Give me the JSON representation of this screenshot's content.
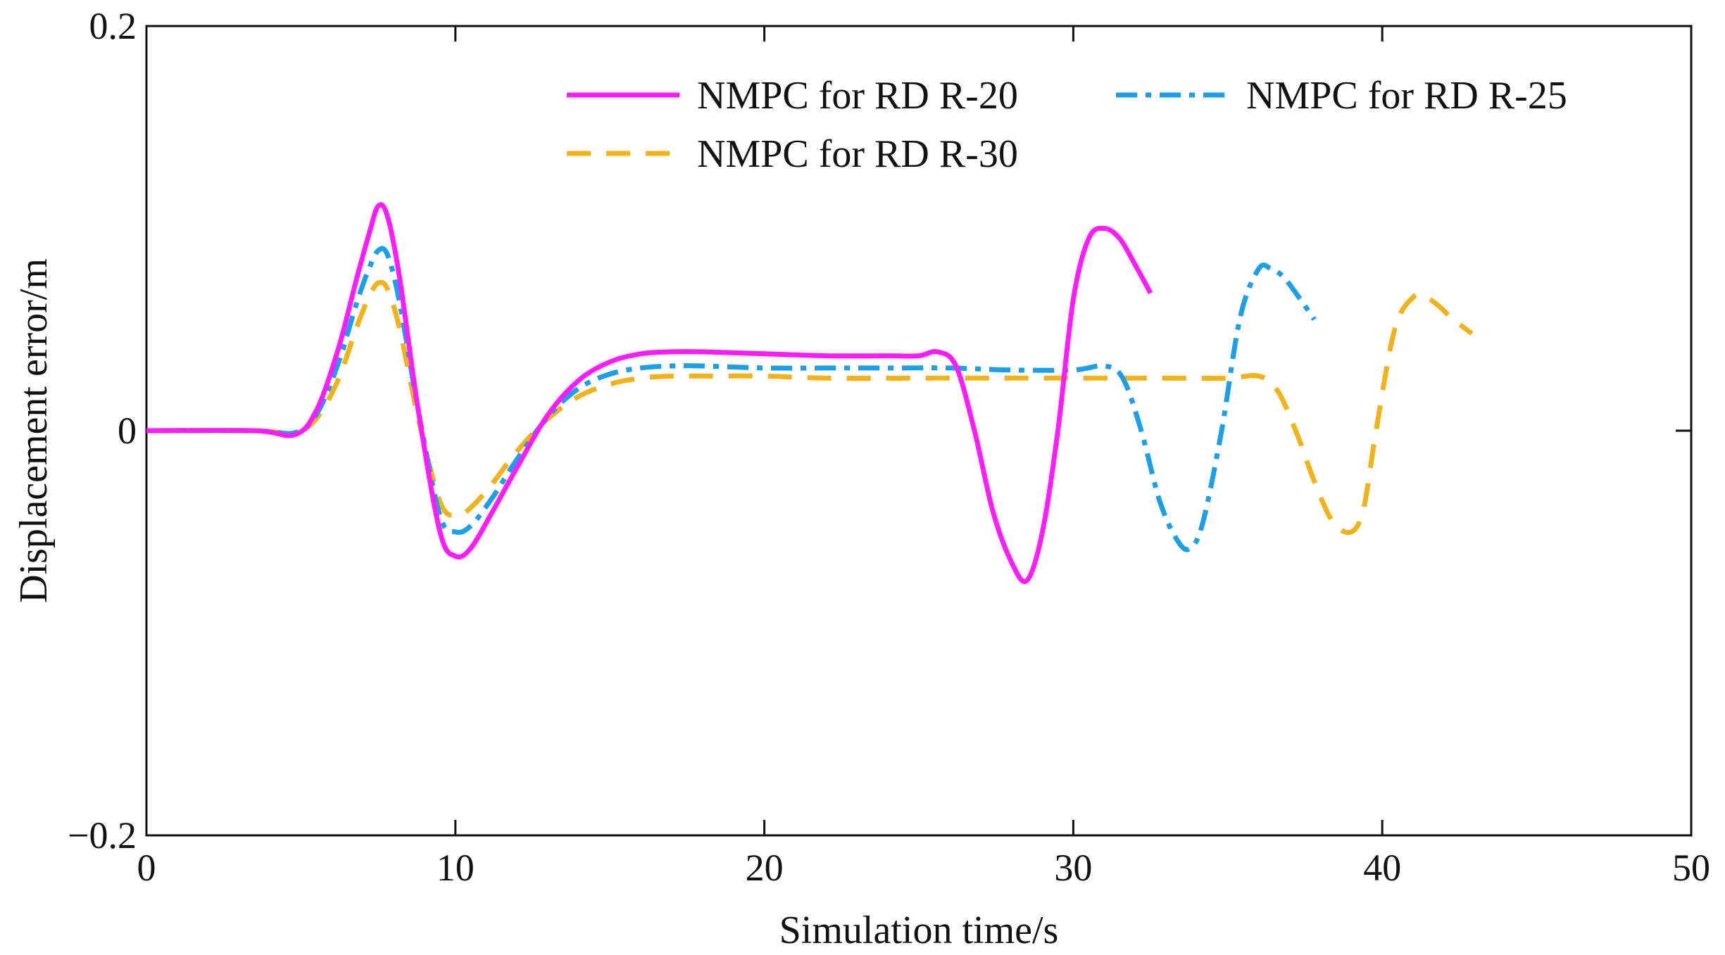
{
  "chart_data": {
    "type": "line",
    "title": "",
    "xlabel": "Simulation time/s",
    "ylabel": "Displacement error/m",
    "xlim": [
      0,
      50
    ],
    "ylim": [
      -0.2,
      0.2
    ],
    "xticks": [
      0,
      10,
      20,
      30,
      40,
      50
    ],
    "xtick_labels": [
      "0",
      "10",
      "20",
      "30",
      "40",
      "50"
    ],
    "yticks": [
      -0.2,
      0,
      0.2
    ],
    "ytick_labels": [
      "−0.2",
      "0",
      "0.2"
    ],
    "grid": false,
    "legend_position": "top-right",
    "series": [
      {
        "name": "NMPC for RD R-20",
        "color": "#ff1cff",
        "style": "solid",
        "x": [
          0,
          3.5,
          4.8,
          5.5,
          6.2,
          6.8,
          7.2,
          7.5,
          7.8,
          8.2,
          8.8,
          9.5,
          10.0,
          10.5,
          11.2,
          12.0,
          13.0,
          14.0,
          15.0,
          16.0,
          17.0,
          18.0,
          20.0,
          22.0,
          24.0,
          25.0,
          25.6,
          26.2,
          26.8,
          27.4,
          28.0,
          28.5,
          29.0,
          29.5,
          30.0,
          30.5,
          31.0,
          31.5,
          32.0,
          32.5
        ],
        "y": [
          0,
          0,
          -0.002,
          0.01,
          0.04,
          0.075,
          0.097,
          0.111,
          0.106,
          0.075,
          0.01,
          -0.05,
          -0.062,
          -0.058,
          -0.04,
          -0.018,
          0.008,
          0.025,
          0.034,
          0.038,
          0.039,
          0.039,
          0.038,
          0.037,
          0.037,
          0.037,
          0.039,
          0.032,
          0.0,
          -0.04,
          -0.065,
          -0.074,
          -0.05,
          0.0,
          0.065,
          0.095,
          0.1,
          0.095,
          0.082,
          0.068
        ]
      },
      {
        "name": "NMPC for RD R-25",
        "color": "#1a9fe8",
        "style": "dashdot",
        "x": [
          0,
          3.5,
          4.8,
          5.5,
          6.2,
          6.8,
          7.2,
          7.5,
          7.8,
          8.2,
          8.8,
          9.5,
          10.0,
          10.5,
          11.2,
          12.0,
          13.0,
          14.0,
          15.0,
          16.0,
          17.0,
          18.0,
          20.0,
          22.0,
          24.0,
          26.0,
          28.0,
          30.0,
          31.0,
          31.6,
          32.2,
          32.8,
          33.4,
          33.8,
          34.2,
          34.8,
          35.4,
          36.0,
          36.4,
          36.8,
          37.3,
          37.8
        ],
        "y": [
          0,
          0,
          -0.001,
          0.008,
          0.033,
          0.063,
          0.08,
          0.089,
          0.087,
          0.063,
          0.01,
          -0.042,
          -0.05,
          -0.047,
          -0.033,
          -0.014,
          0.007,
          0.021,
          0.028,
          0.031,
          0.032,
          0.032,
          0.031,
          0.031,
          0.031,
          0.031,
          0.03,
          0.03,
          0.032,
          0.026,
          0.0,
          -0.035,
          -0.055,
          -0.058,
          -0.045,
          0.0,
          0.056,
          0.08,
          0.08,
          0.076,
          0.066,
          0.055
        ]
      },
      {
        "name": "NMPC for RD R-30",
        "color": "#f2b21a",
        "style": "dashed",
        "x": [
          0,
          3.5,
          4.8,
          5.5,
          6.2,
          6.8,
          7.2,
          7.5,
          7.8,
          8.2,
          8.8,
          9.5,
          10.0,
          10.5,
          11.2,
          12.0,
          13.0,
          14.0,
          15.0,
          16.0,
          17.0,
          18.0,
          20.0,
          22.0,
          25.0,
          28.0,
          31.0,
          33.0,
          35.0,
          36.0,
          36.6,
          37.2,
          37.8,
          38.4,
          39.0,
          39.4,
          39.8,
          40.4,
          41.0,
          41.4,
          41.8,
          42.3,
          42.9
        ],
        "y": [
          0,
          0,
          -0.001,
          0.006,
          0.025,
          0.051,
          0.066,
          0.073,
          0.07,
          0.05,
          0.006,
          -0.035,
          -0.042,
          -0.038,
          -0.026,
          -0.01,
          0.006,
          0.017,
          0.023,
          0.026,
          0.027,
          0.027,
          0.027,
          0.026,
          0.026,
          0.026,
          0.026,
          0.026,
          0.026,
          0.027,
          0.02,
          0.0,
          -0.025,
          -0.045,
          -0.05,
          -0.038,
          0.0,
          0.05,
          0.066,
          0.066,
          0.062,
          0.055,
          0.048
        ]
      }
    ]
  }
}
